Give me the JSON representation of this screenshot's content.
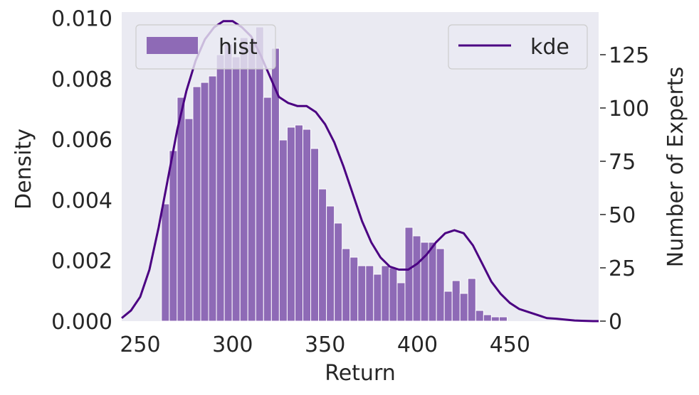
{
  "chart_data": {
    "type": "bar",
    "title": "",
    "xlabel": "Return",
    "ylabel": "Density",
    "y2label": "Number of Experts",
    "xlim": [
      240,
      498
    ],
    "ylim": [
      0,
      0.0102
    ],
    "y2lim": [
      0,
      145
    ],
    "grid": false,
    "background": "#eaeaf2",
    "xticks": [
      "250",
      "300",
      "350",
      "400",
      "450"
    ],
    "xtick_values": [
      250,
      300,
      350,
      400,
      450
    ],
    "yticks": [
      "0.000",
      "0.002",
      "0.004",
      "0.006",
      "0.008",
      "0.010"
    ],
    "ytick_values": [
      0,
      0.002,
      0.004,
      0.006,
      0.008,
      0.01
    ],
    "y2ticks": [
      "0",
      "25",
      "50",
      "75",
      "100",
      "125"
    ],
    "y2tick_values": [
      0,
      25,
      50,
      75,
      100,
      125
    ],
    "hist": {
      "name": "hist",
      "color": "#8e6ab6",
      "bin_width": 4.25,
      "bin_start": 261.5,
      "values": [
        55,
        80,
        105,
        95,
        110,
        112,
        115,
        125,
        130,
        124,
        133,
        130,
        138,
        105,
        128,
        85,
        91,
        92,
        90,
        81,
        62,
        54,
        46,
        34,
        30,
        26,
        26,
        22,
        26,
        25,
        18,
        44,
        40,
        37,
        37,
        34,
        14,
        19,
        13,
        20,
        5,
        3,
        2,
        2
      ]
    },
    "kde": {
      "name": "kde",
      "color": "#4b0082",
      "x": [
        240,
        245,
        250,
        255,
        260,
        265,
        270,
        275,
        280,
        285,
        290,
        295,
        300,
        305,
        310,
        315,
        320,
        325,
        330,
        335,
        340,
        345,
        350,
        355,
        360,
        365,
        370,
        375,
        380,
        385,
        390,
        395,
        400,
        405,
        410,
        415,
        420,
        425,
        430,
        435,
        440,
        445,
        450,
        455,
        460,
        465,
        470,
        475,
        480,
        485,
        490,
        495,
        498
      ],
      "y": [
        0.0001,
        0.00035,
        0.0008,
        0.0017,
        0.0031,
        0.0047,
        0.0063,
        0.0076,
        0.0086,
        0.0093,
        0.0097,
        0.0099,
        0.0099,
        0.0097,
        0.0094,
        0.0088,
        0.0081,
        0.0074,
        0.0072,
        0.0071,
        0.0071,
        0.0069,
        0.0065,
        0.0059,
        0.0051,
        0.0042,
        0.0033,
        0.0026,
        0.0021,
        0.0018,
        0.0017,
        0.0017,
        0.0019,
        0.0022,
        0.0026,
        0.0029,
        0.003,
        0.0029,
        0.0025,
        0.0019,
        0.0013,
        0.0009,
        0.0006,
        0.0004,
        0.0003,
        0.0002,
        0.0001,
        8e-05,
        5e-05,
        2e-05,
        1e-05,
        0.0,
        0.0
      ]
    },
    "legends": [
      {
        "label": "hist",
        "placement": "top-left"
      },
      {
        "label": "kde",
        "placement": "top-right"
      }
    ]
  }
}
